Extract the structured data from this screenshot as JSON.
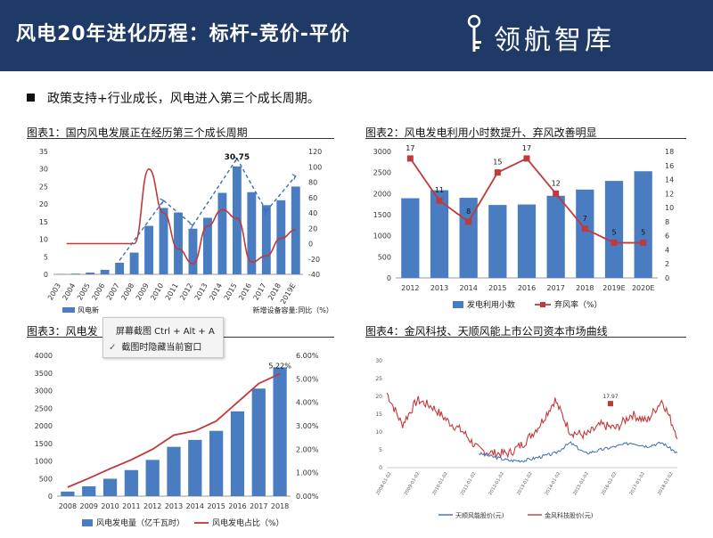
{
  "header": {
    "title": "风电20年进化历程：标杆-竞价-平价",
    "brand": "领航智库"
  },
  "bullet": "政策支持+行业成长，风电进入第三个成长周期。",
  "context_menu": {
    "item1": "屏幕截图 Ctrl + Alt + A",
    "item2": "截图时隐藏当前窗口",
    "check": "✓"
  },
  "colors": {
    "header_bg": "#1f3a66",
    "bar_blue": "#4a7cc2",
    "line_red": "#c0393b",
    "dashed_blue": "#3a6fb8"
  },
  "chart_data": [
    {
      "id": "fig1",
      "type": "bar+line",
      "title": "图表1：国内风电发展正在经历第三个成长周期",
      "categories": [
        "2003",
        "2004",
        "2005",
        "2006",
        "2007",
        "2008",
        "2009",
        "2010",
        "2011",
        "2012",
        "2013",
        "2014",
        "2015",
        "2016",
        "2017",
        "2018",
        "2019E"
      ],
      "series": [
        {
          "name": "风电新增装机容量",
          "axis": "left",
          "values": [
            0.1,
            0.2,
            0.5,
            1.3,
            3.3,
            6.2,
            13.8,
            18.9,
            17.6,
            13.0,
            16.1,
            23.2,
            30.75,
            23.4,
            19.7,
            21.1,
            25.0
          ]
        },
        {
          "name": "风电新增设备容量:同比（%）",
          "axis": "right",
          "values": [
            null,
            null,
            null,
            null,
            0,
            0,
            97,
            40,
            -7,
            -26,
            23,
            44,
            33,
            -24,
            -16,
            7,
            18
          ]
        }
      ],
      "legend_visible": [
        "风电新",
        "新增设备容量:同比（%）"
      ],
      "annotations": [
        {
          "label": "30.75",
          "category": "2015"
        }
      ],
      "yleft": [
        0,
        35
      ],
      "yleft_ticks": [
        0,
        5,
        10,
        15,
        20,
        25,
        30,
        35
      ],
      "yright": [
        -40,
        120
      ],
      "yright_ticks": [
        -40,
        -20,
        0,
        20,
        40,
        60,
        80,
        100,
        120
      ]
    },
    {
      "id": "fig2",
      "type": "bar+line",
      "title": "图表2：风电发电利用小时数提升、弃风改善明显",
      "categories": [
        "2012",
        "2013",
        "2014",
        "2015",
        "2016",
        "2017",
        "2018",
        "2019E",
        "2020E"
      ],
      "series": [
        {
          "name": "发电利用小数",
          "axis": "left",
          "values": [
            1890,
            2080,
            1900,
            1730,
            1742,
            1948,
            2095,
            2300,
            2530
          ]
        },
        {
          "name": "弃风率（%）",
          "axis": "right",
          "values": [
            17,
            11,
            8,
            15,
            17,
            12,
            7,
            5,
            5
          ]
        }
      ],
      "yleft": [
        0,
        3000
      ],
      "yleft_ticks": [
        0,
        500,
        1000,
        1500,
        2000,
        2500,
        3000
      ],
      "yright": [
        0,
        18
      ],
      "yright_ticks": [
        0,
        2,
        4,
        6,
        8,
        10,
        12,
        14,
        16,
        18
      ]
    },
    {
      "id": "fig3",
      "type": "bar+line",
      "title": "图表3：风电发电量及占比",
      "title_visible": "图表3：风电发",
      "categories": [
        "2008",
        "2009",
        "2010",
        "2011",
        "2012",
        "2013",
        "2014",
        "2015",
        "2016",
        "2017",
        "2018"
      ],
      "series": [
        {
          "name": "风电发电量（亿千瓦时）",
          "axis": "left",
          "values": [
            130,
            280,
            494,
            741,
            1030,
            1401,
            1598,
            1856,
            2410,
            3057,
            3660
          ]
        },
        {
          "name": "风电发电占比（%）",
          "axis": "right",
          "values": [
            0.38,
            0.76,
            1.17,
            1.55,
            2.0,
            2.6,
            2.78,
            3.2,
            4.0,
            4.8,
            5.22
          ]
        }
      ],
      "annotations": [
        {
          "label": "5.22%",
          "category": "2018"
        }
      ],
      "yleft": [
        0,
        4000
      ],
      "yleft_ticks": [
        0,
        500,
        1000,
        1500,
        2000,
        2500,
        3000,
        3500,
        4000
      ],
      "yright": [
        0,
        6
      ],
      "yright_ticks": [
        "0.00%",
        "1.00%",
        "2.00%",
        "3.00%",
        "4.00%",
        "5.00%",
        "6.00%"
      ]
    },
    {
      "id": "fig4",
      "type": "line",
      "title": "图表4：金风科技、天顺风能上市公司资本市场曲线",
      "x_ticks": [
        "2008-01-02",
        "2009-01-02",
        "2010-01-02",
        "2011-01-02",
        "2012-01-02",
        "2013-01-02",
        "2014-01-02",
        "2015-01-02",
        "2016-01-02",
        "2017-01-02",
        "2018-01-02"
      ],
      "y": [
        0,
        30
      ],
      "y_ticks": [
        0,
        5,
        10,
        15,
        20,
        25,
        30
      ],
      "series": [
        {
          "name": "金风科技股价(元)",
          "values": [
            21,
            12,
            19,
            17,
            13,
            10,
            5,
            4,
            4,
            7,
            12,
            19,
            10,
            9,
            12,
            11,
            15,
            13,
            19,
            9
          ]
        },
        {
          "name": "天顺风能股价(元)",
          "values": [
            null,
            null,
            null,
            null,
            null,
            null,
            4,
            3,
            2,
            2,
            3,
            4,
            7,
            4,
            5,
            6,
            7,
            6,
            7,
            4
          ]
        }
      ],
      "annotations": [
        {
          "label": "17.97"
        }
      ]
    }
  ]
}
